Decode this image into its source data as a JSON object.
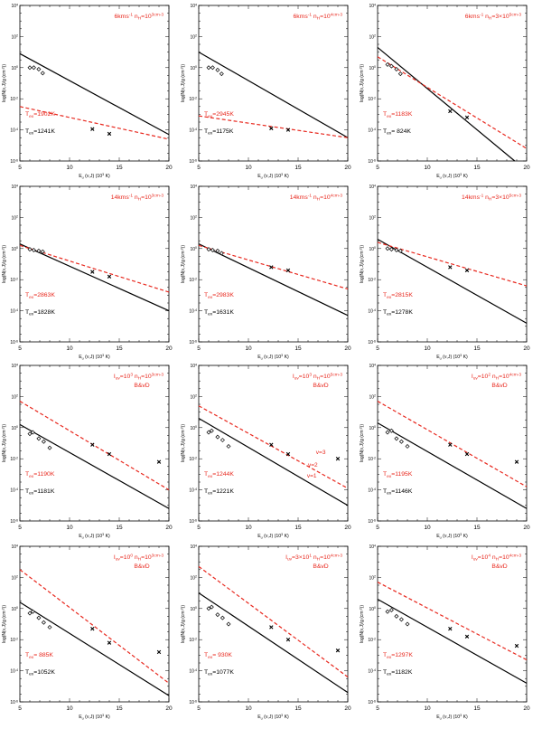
{
  "colors": {
    "red": "#e8281e",
    "black": "#000000",
    "axis": "#000000"
  },
  "axes": {
    "xlabel": "E_u (ν,J) (10^3 K)",
    "ylabel": "log(N(ν,J)/g (cm^-2))",
    "xlim": [
      5,
      20
    ],
    "ylim": [
      -6,
      4
    ],
    "xticks": [
      "5",
      "10",
      "15",
      "20"
    ],
    "yticks": [
      "10^4",
      "10^2",
      "10^0",
      "10^-2",
      "10^-4",
      "10^-6"
    ]
  },
  "chart_data": [
    {
      "type": "scatter",
      "title": "6kms^-1  n_H=10^3cm^-3",
      "subtitle": "",
      "red_label": "T_ex=1902K",
      "black_label": "T_ex=1241K",
      "red_line": [
        [
          5,
          -2.5
        ],
        [
          20,
          -4.6
        ]
      ],
      "black_line": [
        [
          5,
          0.9
        ],
        [
          20,
          -4.3
        ]
      ],
      "diamonds": [
        [
          6.0,
          0.0
        ],
        [
          6.4,
          0.0
        ],
        [
          6.9,
          -0.1
        ],
        [
          7.3,
          -0.35
        ]
      ],
      "crosses": [
        [
          12.3,
          -3.95
        ],
        [
          14.0,
          -4.25
        ]
      ],
      "annotations": []
    },
    {
      "type": "scatter",
      "title": "6kms^-1  n_H=10^4cm^-3",
      "subtitle": "",
      "red_label": "T_ex=2945K",
      "black_label": "T_ex=1175K",
      "red_line": [
        [
          5,
          -3.1
        ],
        [
          20,
          -4.5
        ]
      ],
      "black_line": [
        [
          5,
          1.0
        ],
        [
          20,
          -4.5
        ]
      ],
      "diamonds": [
        [
          6.0,
          0.0
        ],
        [
          6.4,
          0.0
        ],
        [
          6.9,
          -0.15
        ],
        [
          7.3,
          -0.4
        ]
      ],
      "crosses": [
        [
          12.3,
          -3.9
        ],
        [
          14.0,
          -4.0
        ]
      ],
      "annotations": []
    },
    {
      "type": "scatter",
      "title": "6kms^-1  n_H=3×10^5cm^-3",
      "subtitle": "",
      "red_label": "T_ex=1183K",
      "black_label": "T_ex=  824K",
      "red_line": [
        [
          5,
          0.7
        ],
        [
          20,
          -5.2
        ]
      ],
      "black_line": [
        [
          5,
          1.3
        ],
        [
          18.8,
          -6.0
        ]
      ],
      "diamonds": [
        [
          6.0,
          0.2
        ],
        [
          6.4,
          0.1
        ],
        [
          6.9,
          -0.1
        ],
        [
          7.3,
          -0.4
        ]
      ],
      "crosses": [
        [
          12.3,
          -2.8
        ],
        [
          14.0,
          -3.2
        ]
      ],
      "annotations": []
    },
    {
      "type": "scatter",
      "title": "14kms^-1  n_H=10^3cm^-3",
      "subtitle": "",
      "red_label": "T_ex=2863K",
      "black_label": "T_ex=1828K",
      "red_line": [
        [
          5,
          0.2
        ],
        [
          20,
          -2.8
        ]
      ],
      "black_line": [
        [
          5,
          0.3
        ],
        [
          20,
          -4.0
        ]
      ],
      "diamonds": [
        [
          6.0,
          -0.05
        ],
        [
          6.4,
          -0.1
        ],
        [
          6.9,
          -0.15
        ],
        [
          7.3,
          -0.2
        ]
      ],
      "crosses": [
        [
          12.3,
          -1.5
        ],
        [
          14.0,
          -1.8
        ]
      ],
      "annotations": []
    },
    {
      "type": "scatter",
      "title": "14kms^-1  n_H=10^4cm^-3",
      "subtitle": "",
      "red_label": "T_ex=2983K",
      "black_label": "T_ex=1631K",
      "red_line": [
        [
          5,
          0.2
        ],
        [
          20,
          -2.6
        ]
      ],
      "black_line": [
        [
          5,
          0.3
        ],
        [
          20,
          -4.3
        ]
      ],
      "diamonds": [
        [
          6.0,
          -0.05
        ],
        [
          6.4,
          -0.1
        ],
        [
          6.9,
          -0.15
        ],
        [
          7.3,
          -0.3
        ]
      ],
      "crosses": [
        [
          12.3,
          -1.2
        ],
        [
          14.0,
          -1.4
        ]
      ],
      "annotations": []
    },
    {
      "type": "scatter",
      "title": "14kms^-1  n_H=3×10^5cm^-3",
      "subtitle": "",
      "red_label": "T_ex=2815K",
      "black_label": "T_ex=1278K",
      "red_line": [
        [
          5,
          0.4
        ],
        [
          20,
          -2.4
        ]
      ],
      "black_line": [
        [
          5,
          0.6
        ],
        [
          20,
          -4.8
        ]
      ],
      "diamonds": [
        [
          6.0,
          0.0
        ],
        [
          6.4,
          -0.05
        ],
        [
          6.9,
          -0.1
        ],
        [
          7.3,
          -0.15
        ]
      ],
      "crosses": [
        [
          12.3,
          -1.2
        ],
        [
          14.0,
          -1.4
        ]
      ],
      "annotations": []
    },
    {
      "type": "scatter",
      "title": "I_uv=10^3  n_H=10^3cm^-3",
      "subtitle": "B&vD",
      "red_label": "T_ex=1190K",
      "black_label": "T_ex=1181K",
      "red_line": [
        [
          5,
          1.7
        ],
        [
          20,
          -4.0
        ]
      ],
      "black_line": [
        [
          5,
          0.2
        ],
        [
          20,
          -5.2
        ]
      ],
      "diamonds": [
        [
          6.0,
          -0.4
        ],
        [
          6.3,
          -0.3
        ],
        [
          6.9,
          -0.7
        ],
        [
          7.4,
          -0.9
        ],
        [
          8.0,
          -1.3
        ]
      ],
      "crosses": [
        [
          12.3,
          -1.1
        ],
        [
          14.0,
          -1.7
        ],
        [
          19.0,
          -2.2
        ]
      ],
      "annotations": []
    },
    {
      "type": "scatter",
      "title": "I_uv=10^3  n_H=10^5cm^-3",
      "subtitle": "B&vD",
      "red_label": "T_ex=1244K",
      "black_label": "T_ex=1221K",
      "red_line": [
        [
          5,
          1.4
        ],
        [
          20,
          -3.9
        ]
      ],
      "black_line": [
        [
          5,
          0.6
        ],
        [
          20,
          -5.0
        ]
      ],
      "diamonds": [
        [
          6.0,
          -0.3
        ],
        [
          6.3,
          -0.2
        ],
        [
          6.9,
          -0.6
        ],
        [
          7.4,
          -0.8
        ],
        [
          8.0,
          -1.2
        ]
      ],
      "crosses": [
        [
          12.3,
          -1.1
        ],
        [
          14.0,
          -1.7
        ],
        [
          19.0,
          -2.0
        ]
      ],
      "annotations": [
        {
          "text": "v=3",
          "x": 16.8,
          "y": -1.7
        },
        {
          "text": "v=2",
          "x": 16.0,
          "y": -2.5
        },
        {
          "text": "v=1",
          "x": 15.9,
          "y": -3.2
        }
      ]
    },
    {
      "type": "scatter",
      "title": "I_uv=10^2  n_H=10^4cm^-3",
      "subtitle": "B&vD",
      "red_label": "T_ex=1195K",
      "black_label": "T_ex=1146K",
      "red_line": [
        [
          5,
          1.7
        ],
        [
          20,
          -3.8
        ]
      ],
      "black_line": [
        [
          5,
          0.3
        ],
        [
          20,
          -5.2
        ]
      ],
      "diamonds": [
        [
          6.0,
          -0.3
        ],
        [
          6.4,
          -0.2
        ],
        [
          6.9,
          -0.7
        ],
        [
          7.4,
          -0.9
        ],
        [
          8.0,
          -1.2
        ]
      ],
      "crosses": [
        [
          12.3,
          -1.1
        ],
        [
          14.0,
          -1.7
        ],
        [
          19.0,
          -2.2
        ]
      ],
      "annotations": []
    },
    {
      "type": "scatter",
      "title": "I_uv=10^0  n_H=10^3cm^-3",
      "subtitle": "B&vD",
      "red_label": "T_ex=  885K",
      "black_label": "T_ex=1052K",
      "red_line": [
        [
          5,
          2.5
        ],
        [
          20,
          -4.8
        ]
      ],
      "black_line": [
        [
          5,
          0.4
        ],
        [
          20,
          -5.6
        ]
      ],
      "diamonds": [
        [
          6.0,
          -0.3
        ],
        [
          6.3,
          -0.2
        ],
        [
          6.9,
          -0.6
        ],
        [
          7.4,
          -0.9
        ],
        [
          8.0,
          -1.2
        ]
      ],
      "crosses": [
        [
          12.3,
          -1.3
        ],
        [
          14.0,
          -2.2
        ],
        [
          19.0,
          -2.8
        ]
      ],
      "annotations": []
    },
    {
      "type": "scatter",
      "title": "I_uv=3×10^1  n_H=10^4cm^-3",
      "subtitle": "B&vD",
      "red_label": "T_ex=  930K",
      "black_label": "T_ex=1077K",
      "red_line": [
        [
          5,
          2.7
        ],
        [
          20,
          -4.4
        ]
      ],
      "black_line": [
        [
          5,
          1.0
        ],
        [
          20,
          -5.4
        ]
      ],
      "diamonds": [
        [
          6.0,
          0.0
        ],
        [
          6.3,
          0.1
        ],
        [
          6.9,
          -0.4
        ],
        [
          7.4,
          -0.6
        ],
        [
          8.0,
          -1.0
        ]
      ],
      "crosses": [
        [
          12.3,
          -1.2
        ],
        [
          14.0,
          -2.0
        ],
        [
          19.0,
          -2.7
        ]
      ],
      "annotations": []
    },
    {
      "type": "scatter",
      "title": "I_uv=10^4  n_H=10^4cm^-3",
      "subtitle": "B&vD",
      "red_label": "T_ex=1297K",
      "black_label": "T_ex=1182K",
      "red_line": [
        [
          5,
          1.7
        ],
        [
          20,
          -3.3
        ]
      ],
      "black_line": [
        [
          5,
          0.6
        ],
        [
          20,
          -4.8
        ]
      ],
      "diamonds": [
        [
          6.0,
          -0.2
        ],
        [
          6.4,
          -0.1
        ],
        [
          6.9,
          -0.5
        ],
        [
          7.4,
          -0.7
        ],
        [
          8.0,
          -1.0
        ]
      ],
      "crosses": [
        [
          12.3,
          -1.3
        ],
        [
          14.0,
          -1.8
        ],
        [
          19.0,
          -2.4
        ]
      ],
      "annotations": []
    }
  ]
}
